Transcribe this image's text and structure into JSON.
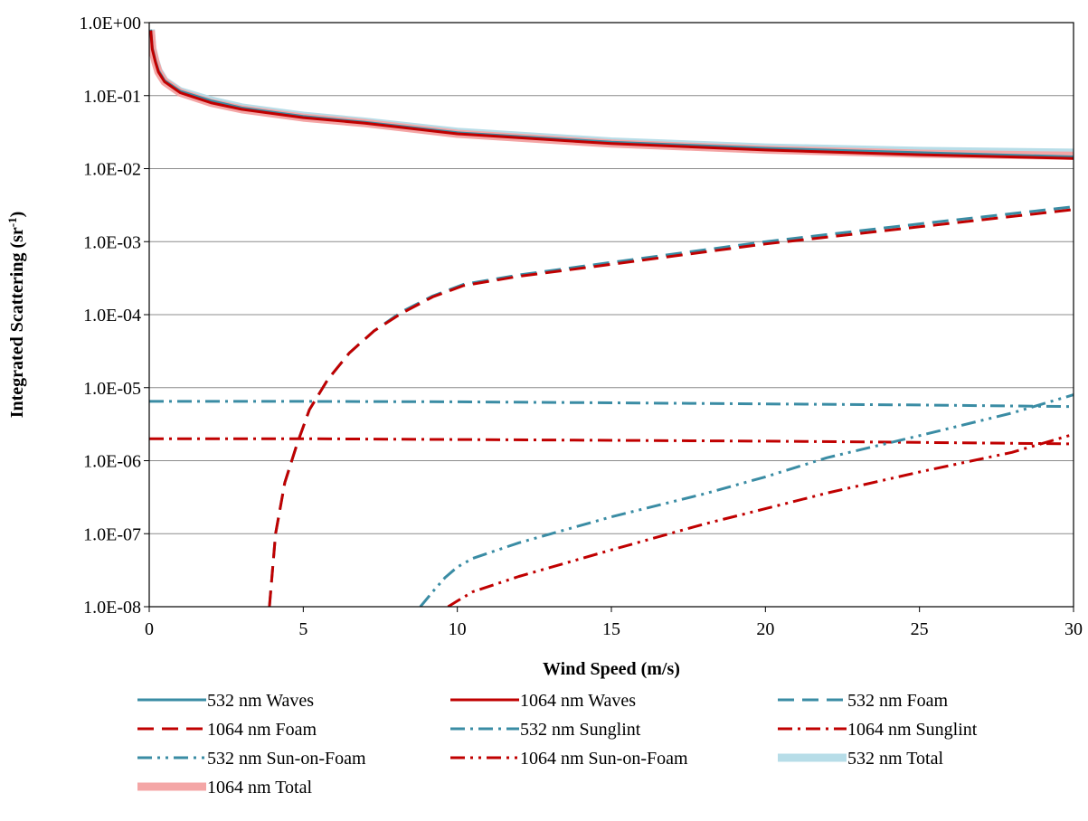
{
  "chart_data": {
    "type": "line",
    "title": "",
    "xlabel": "Wind Speed (m/s)",
    "ylabel": "Integrated Scattering (sr",
    "ylabel_sup": "-1",
    "ylabel_end": ")",
    "xlim": [
      0,
      30
    ],
    "ylim": [
      1e-08,
      1
    ],
    "yscale": "log",
    "grid": "horizontal",
    "legend_position": "bottom",
    "x_ticks": [
      "0",
      "5",
      "10",
      "15",
      "20",
      "25",
      "30"
    ],
    "y_ticks": [
      "1.0E+00",
      "1.0E-01",
      "1.0E-02",
      "1.0E-03",
      "1.0E-04",
      "1.0E-05",
      "1.0E-06",
      "1.0E-07",
      "1.0E-08"
    ],
    "colors": {
      "teal": "#3a8ca4",
      "red": "#c00000",
      "light_teal": "#b7dde8",
      "light_red": "#f4a6a6"
    },
    "series": [
      {
        "name": "532 nm Waves",
        "color": "#3a8ca4",
        "style": "solid",
        "x": [
          0.05,
          0.1,
          0.2,
          0.3,
          0.5,
          1,
          2,
          3,
          5,
          7,
          10,
          15,
          20,
          25,
          30
        ],
        "y": [
          0.8,
          0.45,
          0.3,
          0.22,
          0.16,
          0.115,
          0.085,
          0.068,
          0.052,
          0.043,
          0.031,
          0.023,
          0.019,
          0.0165,
          0.0145
        ]
      },
      {
        "name": "1064 nm Waves",
        "color": "#c00000",
        "style": "solid",
        "x": [
          0.05,
          0.1,
          0.2,
          0.3,
          0.5,
          1,
          2,
          3,
          5,
          7,
          10,
          15,
          20,
          25,
          30
        ],
        "y": [
          0.78,
          0.43,
          0.29,
          0.21,
          0.155,
          0.11,
          0.08,
          0.065,
          0.05,
          0.042,
          0.03,
          0.022,
          0.018,
          0.0155,
          0.0138
        ]
      },
      {
        "name": "532 nm Foam",
        "color": "#3a8ca4",
        "style": "dash",
        "x": [
          3.9,
          4.1,
          4.4,
          4.8,
          5.2,
          5.8,
          6.5,
          7.3,
          8.2,
          9.2,
          10.2,
          12,
          15,
          20,
          25,
          30
        ],
        "y": [
          1e-08,
          1e-07,
          5e-07,
          1.7e-06,
          5e-06,
          1.3e-05,
          3e-05,
          6e-05,
          0.00011,
          0.00018,
          0.00026,
          0.00035,
          0.00052,
          0.001,
          0.00175,
          0.003
        ]
      },
      {
        "name": "1064 nm Foam",
        "color": "#c00000",
        "style": "dash",
        "x": [
          3.9,
          4.1,
          4.4,
          4.8,
          5.2,
          5.8,
          6.5,
          7.3,
          8.2,
          9.2,
          10.2,
          12,
          15,
          20,
          25,
          30
        ],
        "y": [
          1e-08,
          1e-07,
          5e-07,
          1.7e-06,
          5e-06,
          1.3e-05,
          3e-05,
          6e-05,
          0.000105,
          0.000175,
          0.00025,
          0.000335,
          0.00049,
          0.00093,
          0.0016,
          0.00275
        ]
      },
      {
        "name": "532 nm Sunglint",
        "color": "#3a8ca4",
        "style": "dashdot",
        "x": [
          0,
          5,
          10,
          15,
          20,
          25,
          30
        ],
        "y": [
          6.5e-06,
          6.5e-06,
          6.4e-06,
          6.2e-06,
          6e-06,
          5.8e-06,
          5.5e-06
        ]
      },
      {
        "name": "1064 nm Sunglint",
        "color": "#c00000",
        "style": "dashdot",
        "x": [
          0,
          5,
          10,
          15,
          20,
          25,
          30
        ],
        "y": [
          2e-06,
          2e-06,
          1.95e-06,
          1.9e-06,
          1.85e-06,
          1.78e-06,
          1.7e-06
        ]
      },
      {
        "name": "532 nm Sun-on-Foam",
        "color": "#3a8ca4",
        "style": "dashdotdot",
        "x": [
          8.8,
          9.2,
          9.6,
          10,
          10.5,
          12,
          15,
          18,
          20,
          22,
          25,
          28,
          30
        ],
        "y": [
          1e-08,
          1.6e-08,
          2.5e-08,
          3.5e-08,
          4.6e-08,
          7.5e-08,
          1.7e-07,
          3.5e-07,
          6e-07,
          1.1e-06,
          2.2e-06,
          4.5e-06,
          8e-06
        ]
      },
      {
        "name": "1064 nm Sun-on-Foam",
        "color": "#c00000",
        "style": "dashdotdot",
        "x": [
          9.7,
          10,
          10.5,
          12,
          15,
          18,
          20,
          22,
          25,
          28,
          30
        ],
        "y": [
          1e-08,
          1.2e-08,
          1.6e-08,
          2.6e-08,
          6e-08,
          1.35e-07,
          2.2e-07,
          3.6e-07,
          7e-07,
          1.3e-06,
          2.3e-06
        ]
      },
      {
        "name": "532 nm Total",
        "color": "#b7dde8",
        "style": "thick",
        "x": [
          0.05,
          0.1,
          0.2,
          0.3,
          0.5,
          1,
          2,
          3,
          5,
          7,
          10,
          15,
          20,
          25,
          30
        ],
        "y": [
          0.8,
          0.45,
          0.3,
          0.22,
          0.16,
          0.115,
          0.086,
          0.069,
          0.053,
          0.044,
          0.032,
          0.0235,
          0.0195,
          0.0175,
          0.0165
        ]
      },
      {
        "name": "1064 nm Total",
        "color": "#f4a6a6",
        "style": "thick",
        "x": [
          0.05,
          0.1,
          0.2,
          0.3,
          0.5,
          1,
          2,
          3,
          5,
          7,
          10,
          15,
          20,
          25,
          30
        ],
        "y": [
          0.78,
          0.43,
          0.29,
          0.21,
          0.155,
          0.11,
          0.08,
          0.065,
          0.05,
          0.042,
          0.03,
          0.022,
          0.0182,
          0.016,
          0.015
        ]
      }
    ]
  }
}
